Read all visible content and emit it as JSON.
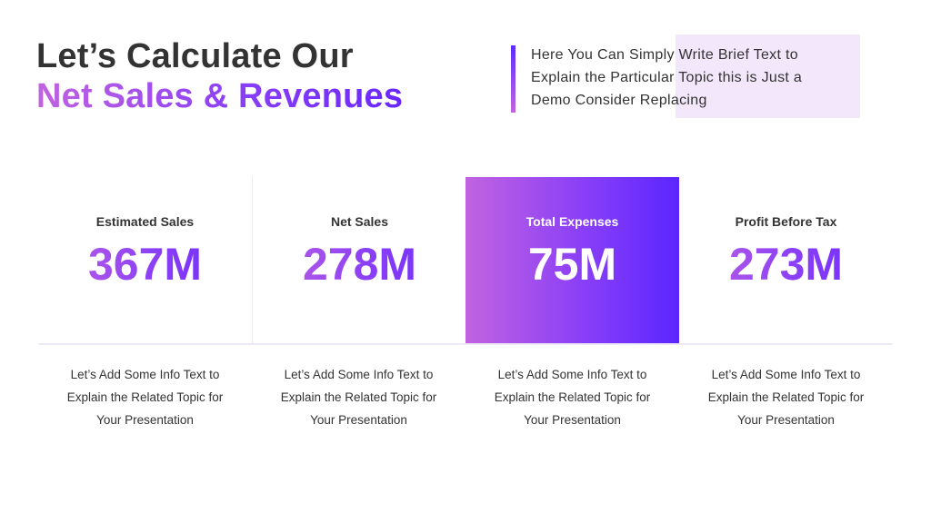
{
  "header": {
    "title_line1": "Let’s Calculate Our",
    "title_line2": "Net Sales & Revenues"
  },
  "intro": {
    "lines": [
      "Here You Can Simply Write Brief Text to",
      "Explain the Particular Topic this is Just a",
      "Demo Consider Replacing"
    ]
  },
  "cards": [
    {
      "label": "Estimated Sales",
      "value": "367M"
    },
    {
      "label": "Net Sales",
      "value": "278M"
    },
    {
      "label": "Total Expenses",
      "value": "75M"
    },
    {
      "label": "Profit Before Tax",
      "value": "273M"
    }
  ],
  "infos": [
    {
      "lines": [
        "Let’s Add Some Info Text to",
        "Explain the Related Topic for",
        "Your Presentation"
      ]
    },
    {
      "lines": [
        "Let’s Add Some Info Text to",
        "Explain the Related Topic for",
        "Your Presentation"
      ]
    },
    {
      "lines": [
        "Let’s Add Some Info Text to",
        "Explain the Related Topic for",
        "Your Presentation"
      ]
    },
    {
      "lines": [
        "Let’s Add Some Info Text to",
        "Explain the Related Topic for",
        "Your Presentation"
      ]
    }
  ],
  "colors": {
    "gradient_start": "#c163e0",
    "gradient_end": "#5b26ff",
    "text": "#333333",
    "highlight_box": "#f3e7fb"
  }
}
